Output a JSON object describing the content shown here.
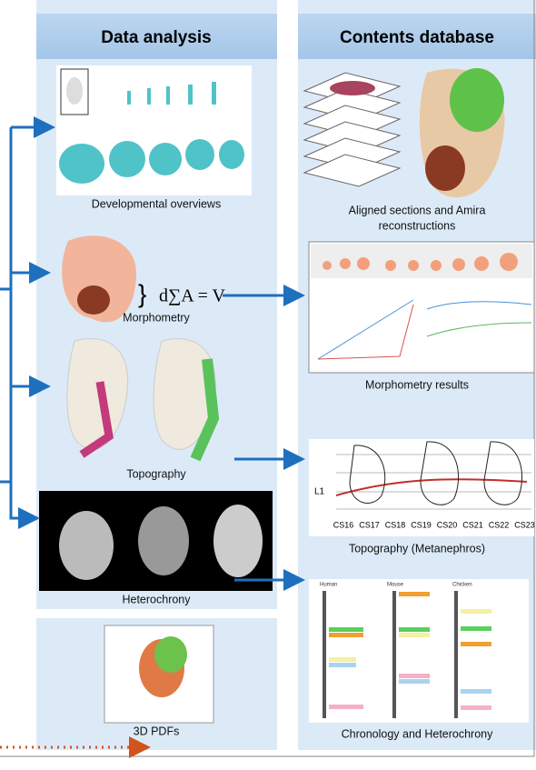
{
  "left": {
    "title": "Data analysis",
    "captions": [
      "Developmental overviews",
      "Morphometry",
      "Topography",
      "Heterochrony"
    ],
    "formula": "d∑A = V",
    "extra": "3D PDFs"
  },
  "right": {
    "title": "Contents database",
    "captions": [
      "Aligned sections and Amira",
      "reconstructions",
      "Morphometry results",
      "Topography (Metanephros)",
      "Chronology and Heterochrony"
    ],
    "topography_level": "L1",
    "topography_stages": [
      "CS16",
      "CS17",
      "CS18",
      "CS19",
      "CS20",
      "CS21",
      "CS22",
      "CS23"
    ],
    "chronology_species": [
      "Human",
      "Mouse",
      "Chicken"
    ]
  }
}
